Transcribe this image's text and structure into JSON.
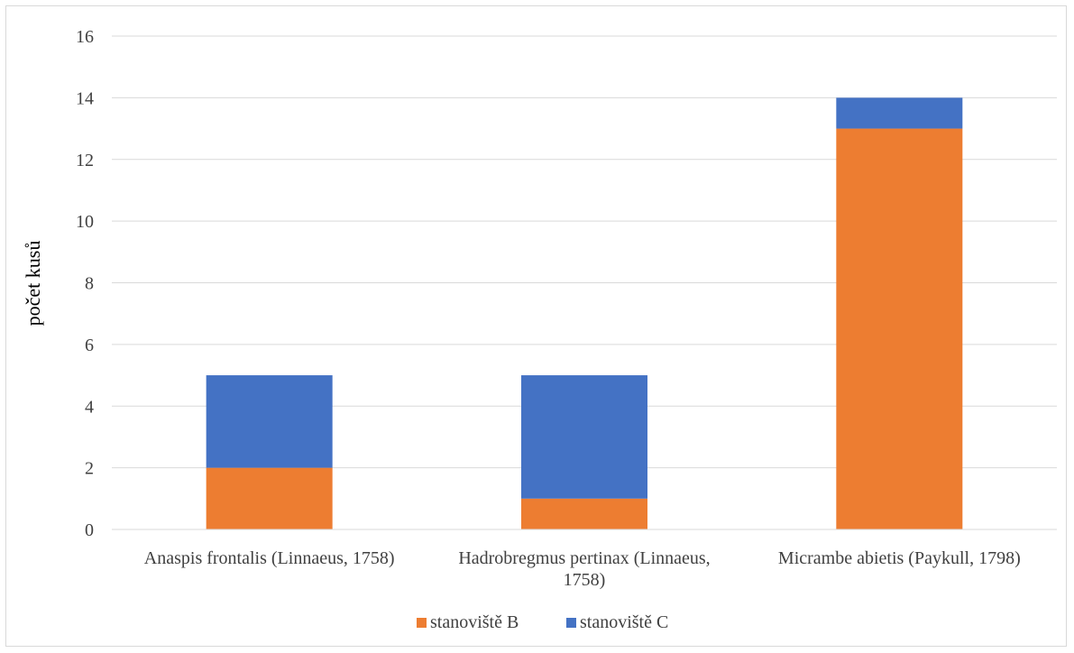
{
  "chart_data": {
    "type": "bar",
    "stacked": true,
    "ylabel": "počet kusů",
    "xlabel": "",
    "ylim": [
      0,
      16
    ],
    "yticks": [
      0,
      2,
      4,
      6,
      8,
      10,
      12,
      14,
      16
    ],
    "grid": true,
    "legend_position": "bottom",
    "categories": [
      [
        "Anaspis frontalis (Linnaeus, 1758)"
      ],
      [
        "Hadrobregmus pertinax (Linnaeus,",
        "1758)"
      ],
      [
        "Micrambe abietis (Paykull, 1798)"
      ]
    ],
    "series": [
      {
        "name": "stanoviště B",
        "color": "#ED7D31",
        "values": [
          2,
          1,
          13
        ]
      },
      {
        "name": "stanoviště C",
        "color": "#4472C4",
        "values": [
          3,
          4,
          1
        ]
      }
    ]
  }
}
